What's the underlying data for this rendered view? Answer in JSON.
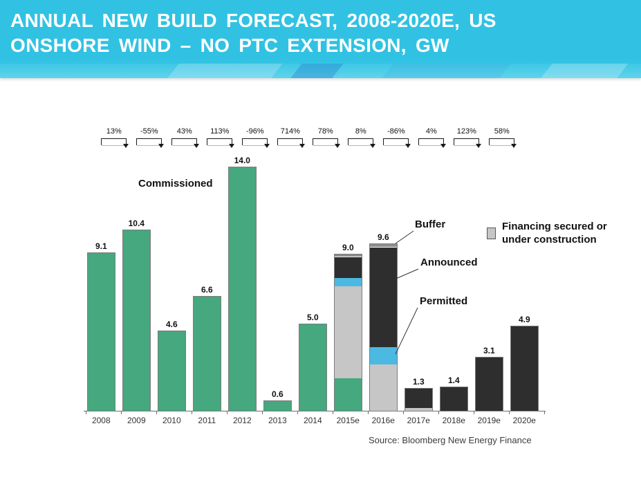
{
  "slide": {
    "title_line1": "ANNUAL NEW BUILD FORECAST, 2008-2020E, US",
    "title_line2": "ONSHORE WIND – NO PTC EXTENSION, GW",
    "header_color": "#31C2E3",
    "source": "Source: Bloomberg New Energy Finance"
  },
  "legend": {
    "label": "Financing secured or under construction",
    "swatch_color": "#C6C6C6"
  },
  "annotations": {
    "commissioned": "Commissioned",
    "buffer": "Buffer",
    "announced": "Announced",
    "permitted": "Permitted"
  },
  "chart_data": {
    "type": "bar",
    "stacked": true,
    "unit": "GW",
    "title": "Annual new build forecast, 2008-2020E, US onshore wind – no PTC extension, GW",
    "xlabel": "",
    "ylabel": "GW",
    "ylim": [
      0,
      15
    ],
    "grid": false,
    "legend_position": "right",
    "categories": [
      "2008",
      "2009",
      "2010",
      "2011",
      "2012",
      "2013",
      "2014",
      "2015e",
      "2016e",
      "2017e",
      "2018e",
      "2019e",
      "2020e"
    ],
    "totals": [
      9.1,
      10.4,
      4.6,
      6.6,
      14.0,
      0.6,
      5.0,
      9.0,
      9.6,
      1.3,
      1.4,
      3.1,
      4.9
    ],
    "total_labels": [
      "9.1",
      "10.4",
      "4.6",
      "6.6",
      "14.0",
      "0.6",
      "5.0",
      "9.0",
      "9.6",
      "1.3",
      "1.4",
      "3.1",
      "4.9"
    ],
    "series": [
      {
        "name": "Commissioned",
        "color": "#46A87E",
        "values": [
          9.1,
          10.4,
          4.6,
          6.6,
          14.0,
          0.6,
          5.0,
          1.9,
          0,
          0,
          0,
          0,
          0
        ]
      },
      {
        "name": "Financing secured or under construction",
        "color": "#C6C6C6",
        "values": [
          0,
          0,
          0,
          0,
          0,
          0,
          0,
          5.3,
          2.7,
          0.2,
          0,
          0,
          0
        ]
      },
      {
        "name": "Permitted",
        "color": "#4BB9E1",
        "values": [
          0,
          0,
          0,
          0,
          0,
          0,
          0,
          0.45,
          1.0,
          0,
          0,
          0,
          0
        ]
      },
      {
        "name": "Announced",
        "color": "#2E2E2E",
        "values": [
          0,
          0,
          0,
          0,
          0,
          0,
          0,
          1.2,
          5.7,
          1.1,
          1.4,
          3.1,
          4.9
        ]
      },
      {
        "name": "Buffer",
        "color": "#8E8E8E",
        "values": [
          0,
          0,
          0,
          0,
          0,
          0,
          0,
          0.15,
          0.2,
          0,
          0,
          0,
          0
        ]
      }
    ],
    "yoy_growth_labels": [
      "13%",
      "-55%",
      "43%",
      "113%",
      "-96%",
      "714%",
      "78%",
      "8%",
      "-86%",
      "4%",
      "123%",
      "58%"
    ]
  }
}
